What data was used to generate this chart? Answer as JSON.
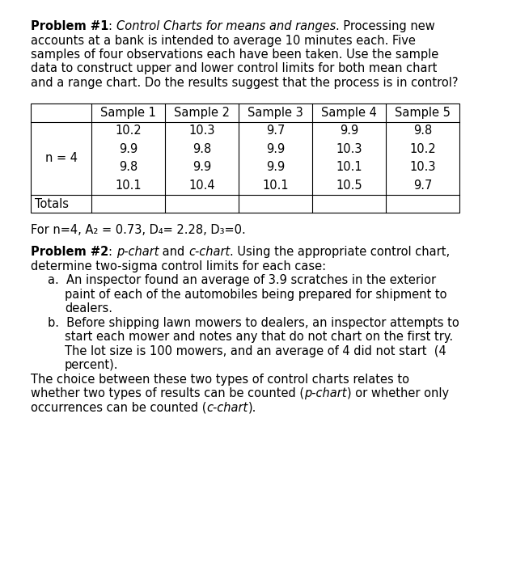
{
  "bg_color": "#ffffff",
  "p1_bold": "Problem #1",
  "p1_colon": ": ",
  "p1_italic": "Control Charts for means and ranges",
  "p1_rest": ". Processing new\naccounts at a bank is intended to average 10 minutes each. Five\nsamples of four observations each have been taken. Use the sample\ndata to construct upper and lower control limits for both mean chart\nand a range chart. Do the results suggest that the process is in control?",
  "table_headers": [
    "",
    "Sample 1",
    "Sample 2",
    "Sample 3",
    "Sample 4",
    "Sample 5"
  ],
  "row_label": "n = 4",
  "table_data": [
    [
      10.2,
      10.3,
      9.7,
      9.9,
      9.8
    ],
    [
      9.9,
      9.8,
      9.9,
      10.3,
      10.2
    ],
    [
      9.8,
      9.9,
      9.9,
      10.1,
      10.3
    ],
    [
      10.1,
      10.4,
      10.1,
      10.5,
      9.7
    ]
  ],
  "totals_label": "Totals",
  "formula_line": "For n=4, A₂ = 0.73, D₄= 2.28, D₃=0.",
  "p2_bold": "Problem #2",
  "p2_colon": ": ",
  "p2_italic1": "p-chart",
  "p2_and": " and ",
  "p2_italic2": "c-chart",
  "p2_rest_line1": ". Using the appropriate control chart,",
  "p2_rest_line2": "determine two-sigma control limits for each case:",
  "item_a_line1": "a.  An inspector found an average of 3.9 scratches in the exterior",
  "item_a_line2": "paint of each of the automobiles being prepared for shipment to",
  "item_a_line3": "dealers.",
  "item_b_line1": "b.  Before shipping lawn mowers to dealers, an inspector attempts to",
  "item_b_line2": "start each mower and notes any that do not chart on the first try.",
  "item_b_line3": "The lot size is 100 mowers, and an average of 4 did not start  (4",
  "item_b_line4": "percent).",
  "close_line1": "The choice between these two types of control charts relates to",
  "close_line2_pre": "whether two types of results can be counted (",
  "close_line2_italic": "p-chart",
  "close_line2_post": ") or whether only",
  "close_line3_pre": "occurrences can be counted (",
  "close_line3_italic": "c-chart",
  "close_line3_post": ").",
  "font_size_pt": 10.5,
  "fig_width": 6.33,
  "fig_height": 7.0,
  "dpi": 100
}
